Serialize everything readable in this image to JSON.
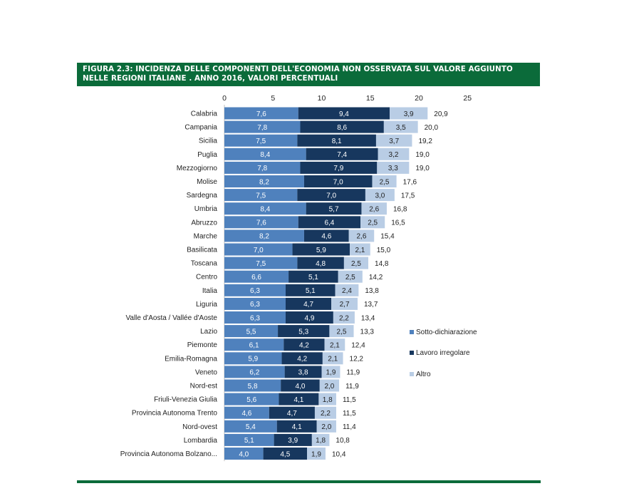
{
  "figure": {
    "title_line1": "FIGURA 2.3: INCIDENZA DELLE COMPONENTI DELL'ECONOMIA NON OSSERVATA SUL VALORE AGGIUNTO",
    "title_line2": "NELLE REGIONI ITALIANE . ANNO 2016, VALORI PERCENTUALI"
  },
  "chart_data": {
    "type": "bar",
    "orientation": "horizontal",
    "stacked": true,
    "categories": [
      "Calabria",
      "Campania",
      "Sicilia",
      "Puglia",
      "Mezzogiorno",
      "Molise",
      "Sardegna",
      "Umbria",
      "Abruzzo",
      "Marche",
      "Basilicata",
      "Toscana",
      "Centro",
      "Italia",
      "Liguria",
      "Valle d'Aosta / Vallée d'Aoste",
      "Lazio",
      "Piemonte",
      "Emilia-Romagna",
      "Veneto",
      "Nord-est",
      "Friuli-Venezia Giulia",
      "Provincia Autonoma Trento",
      "Nord-ovest",
      "Lombardia",
      "Provincia Autonoma Bolzano..."
    ],
    "series": [
      {
        "name": "Sotto-dichiarazione",
        "color": "#4f81bd",
        "values": [
          "7,6",
          "7,8",
          "7,5",
          "8,4",
          "7,8",
          "8,2",
          "7,5",
          "8,4",
          "7,6",
          "8,2",
          "7,0",
          "7,5",
          "6,6",
          "6,3",
          "6,3",
          "6,3",
          "5,5",
          "6,1",
          "5,9",
          "6,2",
          "5,8",
          "5,6",
          "4,6",
          "5,4",
          "5,1",
          "4,0"
        ]
      },
      {
        "name": "Lavoro irregolare",
        "color": "#17375e",
        "values": [
          "9,4",
          "8,6",
          "8,1",
          "7,4",
          "7,9",
          "7,0",
          "7,0",
          "5,7",
          "6,4",
          "4,6",
          "5,9",
          "4,8",
          "5,1",
          "5,1",
          "4,7",
          "4,9",
          "5,3",
          "4,2",
          "4,2",
          "3,8",
          "4,0",
          "4,1",
          "4,7",
          "4,1",
          "3,9",
          "4,5"
        ]
      },
      {
        "name": "Altro",
        "color": "#b9cde5",
        "values": [
          "3,9",
          "3,5",
          "3,7",
          "3,2",
          "3,3",
          "2,5",
          "3,0",
          "2,6",
          "2,5",
          "2,6",
          "2,1",
          "2,5",
          "2,5",
          "2,4",
          "2,7",
          "2,2",
          "2,5",
          "2,1",
          "2,1",
          "1,9",
          "2,0",
          "1,8",
          "2,2",
          "2,0",
          "1,8",
          "1,9"
        ]
      }
    ],
    "totals": [
      "20,9",
      "20,0",
      "19,2",
      "19,0",
      "19,0",
      "17,6",
      "17,5",
      "16,8",
      "16,5",
      "15,4",
      "15,0",
      "14,8",
      "14,2",
      "13,8",
      "13,7",
      "13,4",
      "13,3",
      "12,4",
      "12,2",
      "11,9",
      "11,9",
      "11,5",
      "11,5",
      "11,4",
      "10,8",
      "10,4"
    ],
    "xlim": [
      0,
      25
    ],
    "xticks": [
      "0",
      "5",
      "10",
      "15",
      "20",
      "25"
    ],
    "axis_position": "top",
    "legend_position": "right",
    "grid": false,
    "title": "",
    "xlabel": "",
    "ylabel": ""
  }
}
